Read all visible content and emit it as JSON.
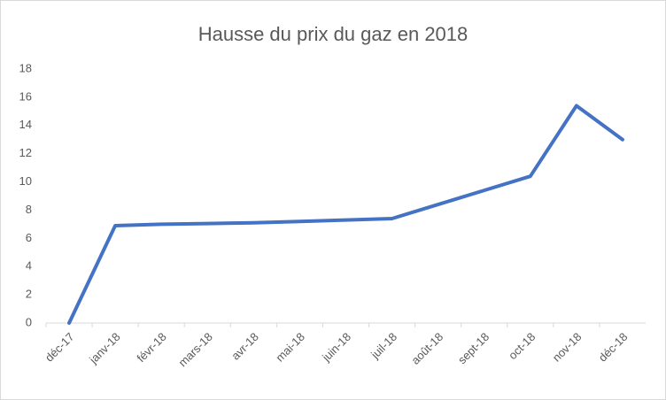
{
  "chart_data": {
    "type": "line",
    "title": "Hausse du prix du gaz en 2018",
    "categories": [
      "déc-17",
      "janv-18",
      "févr-18",
      "mars-18",
      "avr-18",
      "mai-18",
      "juin-18",
      "juil-18",
      "août-18",
      "sept-18",
      "oct-18",
      "nov-18",
      "déc-18"
    ],
    "series": [
      {
        "name": "Hausse du prix du gaz",
        "color": "#4472c4",
        "values": [
          0,
          6.9,
          7.0,
          7.05,
          7.1,
          7.2,
          7.3,
          7.4,
          8.4,
          9.4,
          10.4,
          15.4,
          13
        ]
      }
    ],
    "ylim": [
      0,
      18
    ],
    "yticks": [
      0,
      2,
      4,
      6,
      8,
      10,
      12,
      14,
      16,
      18
    ],
    "grid": false
  }
}
